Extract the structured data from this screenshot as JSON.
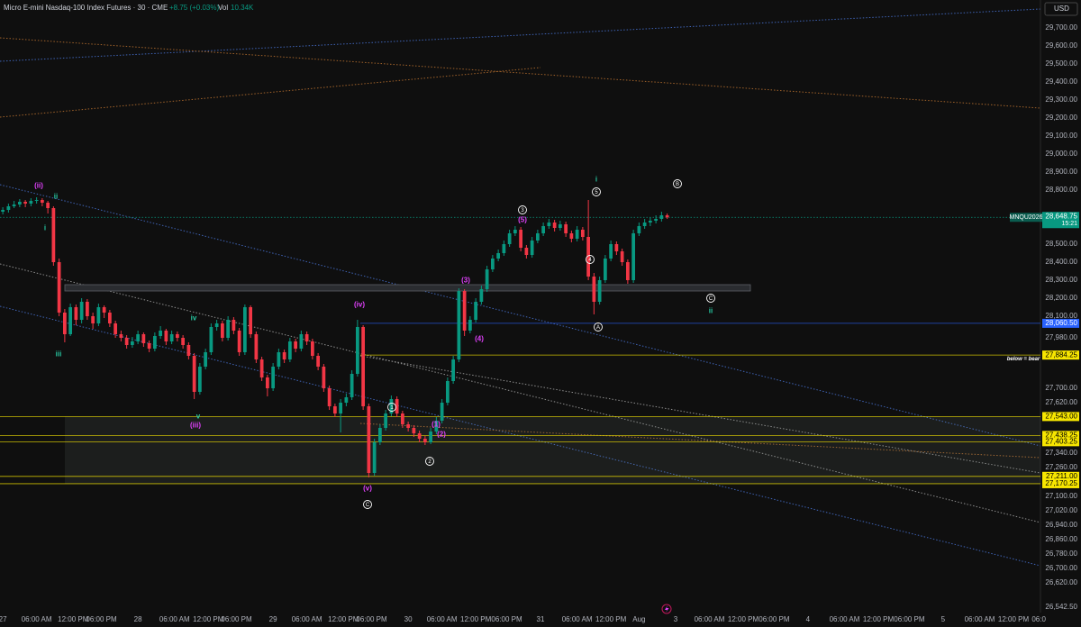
{
  "header": {
    "symbol": "Micro E-mini Nasdaq-100 Index Futures · 30 · CME",
    "change": "+8.75 (+0.03%)",
    "volume_label": "Vol",
    "volume": "10.34K",
    "currency": "USD"
  },
  "chart_data": {
    "type": "candlestick",
    "up_color": "#089981",
    "down_color": "#f23645",
    "grid": false,
    "x": [
      0,
      1,
      2,
      3,
      4,
      5,
      6,
      7,
      8,
      9,
      10,
      11,
      12,
      13,
      14,
      15,
      16,
      17,
      18,
      19,
      20,
      21,
      22,
      23,
      24,
      25,
      26,
      27,
      28,
      29,
      30,
      31,
      32,
      33,
      34,
      35,
      36,
      37,
      38,
      39,
      40,
      41,
      42,
      43,
      44,
      45,
      46,
      47,
      48,
      49,
      50,
      51,
      52,
      53,
      54,
      55,
      56,
      57,
      58,
      59,
      60,
      61,
      62,
      63,
      64,
      65,
      66,
      67,
      68,
      69,
      70,
      71,
      72,
      73,
      74,
      75,
      76,
      77,
      78,
      79,
      80,
      81,
      82,
      83,
      84,
      85,
      86,
      87,
      88,
      89,
      90,
      91,
      92,
      93,
      94,
      95,
      96,
      97,
      98,
      99,
      100,
      101,
      102,
      103,
      104,
      105,
      106,
      107,
      108,
      109,
      110,
      111,
      112,
      113,
      114,
      115,
      116,
      117,
      118
    ],
    "ohlc": [
      [
        28680,
        28705,
        28665,
        28690
      ],
      [
        28690,
        28725,
        28675,
        28710
      ],
      [
        28710,
        28740,
        28700,
        28720
      ],
      [
        28720,
        28750,
        28705,
        28735
      ],
      [
        28735,
        28745,
        28705,
        28725
      ],
      [
        28725,
        28755,
        28710,
        28740
      ],
      [
        28740,
        28760,
        28725,
        28745
      ],
      [
        28745,
        28755,
        28710,
        28730
      ],
      [
        28730,
        28740,
        28670,
        28700
      ],
      [
        28700,
        28710,
        28380,
        28400
      ],
      [
        28400,
        28420,
        28100,
        28120
      ],
      [
        28120,
        28140,
        27955,
        28000
      ],
      [
        28000,
        28170,
        27990,
        28150
      ],
      [
        28150,
        28165,
        28050,
        28080
      ],
      [
        28080,
        28200,
        28060,
        28180
      ],
      [
        28180,
        28195,
        28080,
        28100
      ],
      [
        28100,
        28120,
        28030,
        28060
      ],
      [
        28060,
        28170,
        28045,
        28150
      ],
      [
        28150,
        28160,
        28090,
        28120
      ],
      [
        28120,
        28135,
        28040,
        28060
      ],
      [
        28060,
        28075,
        27980,
        28000
      ],
      [
        28000,
        28020,
        27960,
        27980
      ],
      [
        27980,
        27995,
        27920,
        27940
      ],
      [
        27940,
        27985,
        27925,
        27960
      ],
      [
        27960,
        28020,
        27945,
        28000
      ],
      [
        28000,
        28010,
        27930,
        27950
      ],
      [
        27950,
        27965,
        27900,
        27920
      ],
      [
        27920,
        28010,
        27905,
        27990
      ],
      [
        27990,
        28045,
        27975,
        28020
      ],
      [
        28020,
        28030,
        27940,
        27960
      ],
      [
        27960,
        28020,
        27945,
        28000
      ],
      [
        28000,
        28015,
        27960,
        27980
      ],
      [
        27980,
        27995,
        27920,
        27940
      ],
      [
        27940,
        27955,
        27860,
        27880
      ],
      [
        27880,
        27895,
        27640,
        27680
      ],
      [
        27680,
        27840,
        27665,
        27820
      ],
      [
        27820,
        27920,
        27805,
        27900
      ],
      [
        27900,
        28060,
        27885,
        28040
      ],
      [
        28040,
        28080,
        28020,
        28060
      ],
      [
        28060,
        28075,
        27960,
        27980
      ],
      [
        27980,
        28100,
        27965,
        28080
      ],
      [
        28080,
        28095,
        28000,
        28020
      ],
      [
        28020,
        28035,
        27880,
        27900
      ],
      [
        27900,
        28165,
        27885,
        28150
      ],
      [
        28150,
        28160,
        27980,
        28000
      ],
      [
        28000,
        28015,
        27840,
        27860
      ],
      [
        27860,
        27875,
        27740,
        27760
      ],
      [
        27760,
        27775,
        27655,
        27700
      ],
      [
        27700,
        27840,
        27685,
        27820
      ],
      [
        27820,
        27920,
        27805,
        27900
      ],
      [
        27900,
        27915,
        27840,
        27860
      ],
      [
        27860,
        27980,
        27845,
        27960
      ],
      [
        27960,
        27975,
        27900,
        27920
      ],
      [
        27920,
        28020,
        27905,
        28000
      ],
      [
        28000,
        28015,
        27940,
        27960
      ],
      [
        27960,
        27975,
        27860,
        27880
      ],
      [
        27880,
        27895,
        27800,
        27820
      ],
      [
        27820,
        27835,
        27680,
        27700
      ],
      [
        27700,
        27715,
        27580,
        27600
      ],
      [
        27600,
        27615,
        27540,
        27560
      ],
      [
        27560,
        27640,
        27455,
        27620
      ],
      [
        27620,
        27670,
        27600,
        27650
      ],
      [
        27650,
        27800,
        27635,
        27780
      ],
      [
        27780,
        28080,
        27765,
        28040
      ],
      [
        28040,
        28050,
        27580,
        27600
      ],
      [
        27600,
        27615,
        27205,
        27230
      ],
      [
        27230,
        27420,
        27215,
        27400
      ],
      [
        27400,
        27500,
        27385,
        27480
      ],
      [
        27480,
        27580,
        27465,
        27560
      ],
      [
        27560,
        27660,
        27545,
        27640
      ],
      [
        27640,
        27655,
        27540,
        27560
      ],
      [
        27560,
        27575,
        27480,
        27500
      ],
      [
        27500,
        27515,
        27460,
        27480
      ],
      [
        27480,
        27495,
        27430,
        27450
      ],
      [
        27450,
        27465,
        27400,
        27420
      ],
      [
        27420,
        27435,
        27385,
        27400
      ],
      [
        27400,
        27480,
        27390,
        27460
      ],
      [
        27460,
        27540,
        27445,
        27520
      ],
      [
        27520,
        27640,
        27505,
        27620
      ],
      [
        27620,
        27760,
        27605,
        27740
      ],
      [
        27740,
        27880,
        27725,
        27860
      ],
      [
        27860,
        28255,
        27845,
        28240
      ],
      [
        28240,
        28250,
        27990,
        28020
      ],
      [
        28020,
        28100,
        28005,
        28080
      ],
      [
        28080,
        28200,
        28065,
        28180
      ],
      [
        28180,
        28270,
        28165,
        28250
      ],
      [
        28250,
        28380,
        28235,
        28360
      ],
      [
        28360,
        28440,
        28345,
        28420
      ],
      [
        28420,
        28470,
        28405,
        28450
      ],
      [
        28450,
        28520,
        28435,
        28500
      ],
      [
        28500,
        28580,
        28485,
        28560
      ],
      [
        28560,
        28600,
        28545,
        28580
      ],
      [
        28580,
        28595,
        28460,
        28480
      ],
      [
        28480,
        28495,
        28420,
        28440
      ],
      [
        28440,
        28540,
        28425,
        28520
      ],
      [
        28520,
        28580,
        28505,
        28560
      ],
      [
        28560,
        28620,
        28545,
        28600
      ],
      [
        28600,
        28640,
        28585,
        28620
      ],
      [
        28620,
        28635,
        28570,
        28590
      ],
      [
        28590,
        28630,
        28575,
        28610
      ],
      [
        28610,
        28625,
        28540,
        28560
      ],
      [
        28560,
        28575,
        28510,
        28530
      ],
      [
        28530,
        28600,
        28515,
        28580
      ],
      [
        28580,
        28595,
        28520,
        28540
      ],
      [
        28540,
        28745,
        28300,
        28320
      ],
      [
        28320,
        28340,
        28110,
        28180
      ],
      [
        28180,
        28320,
        28165,
        28300
      ],
      [
        28300,
        28440,
        28285,
        28420
      ],
      [
        28420,
        28520,
        28405,
        28500
      ],
      [
        28500,
        28515,
        28440,
        28460
      ],
      [
        28460,
        28475,
        28380,
        28400
      ],
      [
        28400,
        28415,
        28280,
        28300
      ],
      [
        28300,
        28580,
        28285,
        28560
      ],
      [
        28560,
        28620,
        28545,
        28600
      ],
      [
        28600,
        28640,
        28585,
        28620
      ],
      [
        28620,
        28650,
        28600,
        28630
      ],
      [
        28630,
        28660,
        28615,
        28640
      ],
      [
        28640,
        28680,
        28625,
        28660
      ],
      [
        28660,
        28670,
        28640,
        28648.75
      ]
    ],
    "xlim": [
      -0.5,
      184.3
    ],
    "xticks": [
      {
        "value": 0,
        "label": "27"
      },
      {
        "value": 6,
        "label": "06:00 AM"
      },
      {
        "value": 12.5,
        "label": "12:00 PM"
      },
      {
        "value": 17.5,
        "label": "06:00 PM"
      },
      {
        "value": 24,
        "label": "28"
      },
      {
        "value": 30.5,
        "label": "06:00 AM"
      },
      {
        "value": 36.5,
        "label": "12:00 PM"
      },
      {
        "value": 41.5,
        "label": "06:00 PM"
      },
      {
        "value": 48,
        "label": "29"
      },
      {
        "value": 54,
        "label": "06:00 AM"
      },
      {
        "value": 60.5,
        "label": "12:00 PM"
      },
      {
        "value": 65.5,
        "label": "06:00 PM"
      },
      {
        "value": 72,
        "label": "30"
      },
      {
        "value": 78,
        "label": "06:00 AM"
      },
      {
        "value": 84,
        "label": "12:00 PM"
      },
      {
        "value": 89.5,
        "label": "06:00 PM"
      },
      {
        "value": 95.5,
        "label": "31"
      },
      {
        "value": 102,
        "label": "06:00 AM"
      },
      {
        "value": 108,
        "label": "12:00 PM"
      },
      {
        "value": 113,
        "label": "Aug"
      },
      {
        "value": 119.5,
        "label": "3"
      },
      {
        "value": 125.5,
        "label": "06:00 AM"
      },
      {
        "value": 131.5,
        "label": "12:00 PM"
      },
      {
        "value": 137,
        "label": "06:00 PM"
      },
      {
        "value": 143,
        "label": "4"
      },
      {
        "value": 149.5,
        "label": "06:00 AM"
      },
      {
        "value": 155.5,
        "label": "12:00 PM"
      },
      {
        "value": 161,
        "label": "06:00 PM"
      },
      {
        "value": 167,
        "label": "5"
      },
      {
        "value": 173.5,
        "label": "06:00 AM"
      },
      {
        "value": 179.5,
        "label": "12:00 PM"
      },
      {
        "value": 184,
        "label": "06:0"
      }
    ],
    "ylim": [
      26455,
      29855
    ],
    "yticks": [
      {
        "value": 29700,
        "label": "29,700.00"
      },
      {
        "value": 29600,
        "label": "29,600.00"
      },
      {
        "value": 29500,
        "label": "29,500.00"
      },
      {
        "value": 29400,
        "label": "29,400.00"
      },
      {
        "value": 29300,
        "label": "29,300.00"
      },
      {
        "value": 29200,
        "label": "29,200.00"
      },
      {
        "value": 29100,
        "label": "29,100.00"
      },
      {
        "value": 29000,
        "label": "29,000.00"
      },
      {
        "value": 28900,
        "label": "28,900.00"
      },
      {
        "value": 28800,
        "label": "28,800.00"
      },
      {
        "value": 28500,
        "label": "28,500.00"
      },
      {
        "value": 28400,
        "label": "28,400.00"
      },
      {
        "value": 28300,
        "label": "28,300.00"
      },
      {
        "value": 28200,
        "label": "28,200.00"
      },
      {
        "value": 28100,
        "label": "28,100.00"
      },
      {
        "value": 27980,
        "label": "27,980.00"
      },
      {
        "value": 27700,
        "label": "27,700.00"
      },
      {
        "value": 27620,
        "label": "27,620.00"
      },
      {
        "value": 27340,
        "label": "27,340.00"
      },
      {
        "value": 27260,
        "label": "27,260.00"
      },
      {
        "value": 27100,
        "label": "27,100.00"
      },
      {
        "value": 27020,
        "label": "27,020.00"
      },
      {
        "value": 26940,
        "label": "26,940.00"
      },
      {
        "value": 26860,
        "label": "26,860.00"
      },
      {
        "value": 26780,
        "label": "26,780.00"
      },
      {
        "value": 26700,
        "label": "26,700.00"
      },
      {
        "value": 26620,
        "label": "26,620.00"
      }
    ],
    "levels": [
      {
        "value": 28648.75,
        "label": "28,648.75",
        "color": "#089981",
        "symbol": "MNQU2026",
        "countdown": "15:21"
      },
      {
        "value": 28060.5,
        "label": "28,060.50",
        "color": "#2962ff"
      },
      {
        "value": 27884.25,
        "label": "27,884.25",
        "color": "#f7e600"
      },
      {
        "value": 27543,
        "label": "27,543.00",
        "color": "#f7e600"
      },
      {
        "value": 27438.25,
        "label": "27,438.25",
        "color": "#f7e600"
      },
      {
        "value": 27403.25,
        "label": "27,403.25",
        "color": "#f7e600"
      },
      {
        "value": 27211,
        "label": "27,211.00",
        "color": "#f7e600"
      },
      {
        "value": 27170.25,
        "label": "27,170.25",
        "color": "#f7e600"
      }
    ],
    "scale_bottom_label": "26,542.50",
    "annotations": [
      {
        "text": "(ii)",
        "color": "#e040fb"
      },
      {
        "text": "ii",
        "color": "#26c6a0"
      },
      {
        "text": "i",
        "color": "#26c6a0"
      },
      {
        "text": "iii",
        "color": "#26c6a0"
      },
      {
        "text": "iv",
        "color": "#26c6a0"
      },
      {
        "text": "v",
        "color": "#26c6a0"
      },
      {
        "text": "(iii)",
        "color": "#e040fb"
      },
      {
        "text": "(iv)",
        "color": "#e040fb"
      },
      {
        "text": "(v)",
        "color": "#e040fb"
      },
      {
        "text": "C",
        "color": "#ffffff",
        "circled": true
      },
      {
        "text": "1",
        "color": "#ffffff",
        "circled": true
      },
      {
        "text": "(1)",
        "color": "#e040fb"
      },
      {
        "text": "(2)",
        "color": "#e040fb"
      },
      {
        "text": "2",
        "color": "#ffffff",
        "circled": true
      },
      {
        "text": "(3)",
        "color": "#e040fb"
      },
      {
        "text": "(4)",
        "color": "#e040fb"
      },
      {
        "text": "3",
        "color": "#ffffff",
        "circled": true
      },
      {
        "text": "(5)",
        "color": "#e040fb"
      },
      {
        "text": "i",
        "color": "#26c6a0"
      },
      {
        "text": "5",
        "color": "#ffffff",
        "circled": true
      },
      {
        "text": "4",
        "color": "#ffffff",
        "circled": true
      },
      {
        "text": "A",
        "color": "#ffffff",
        "circled": true
      },
      {
        "text": "B",
        "color": "#ffffff",
        "circled": true
      },
      {
        "text": "C",
        "color": "#ffffff",
        "circled": true
      },
      {
        "text": "ii",
        "color": "#26c6a0"
      },
      {
        "text": "below = bear",
        "color": "#ffffff"
      }
    ]
  }
}
